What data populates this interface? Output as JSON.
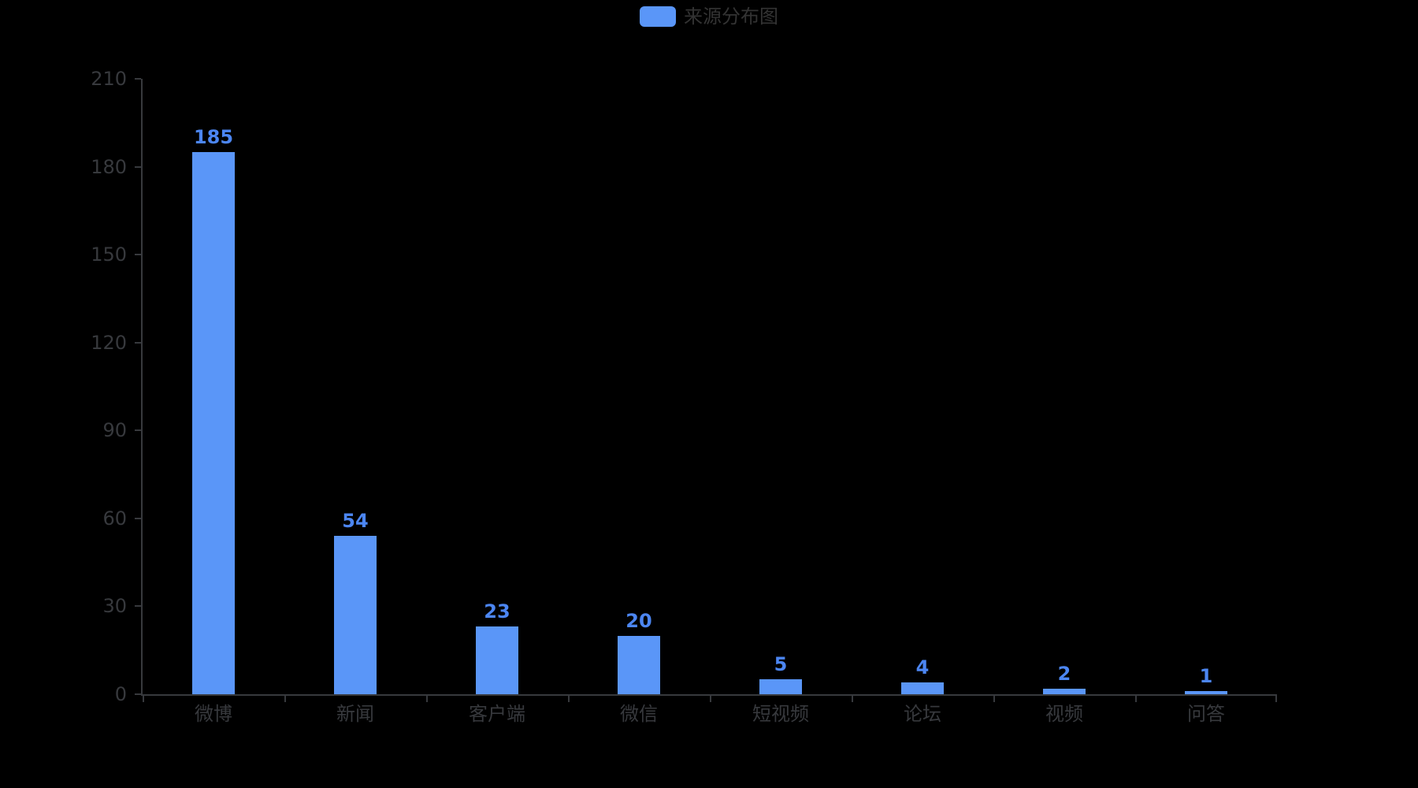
{
  "background_color": "#000000",
  "colors": {
    "bar": "#5A96F8",
    "value_label": "#4C86F2",
    "axis": "#37393D",
    "axis_label": "#37393D",
    "legend_text": "#333333"
  },
  "legend": {
    "label": "来源分布图"
  },
  "chart_data": {
    "type": "bar",
    "title": "来源分布图",
    "categories": [
      "微博",
      "新闻",
      "客户端",
      "微信",
      "短视频",
      "论坛",
      "视频",
      "问答"
    ],
    "values": [
      185,
      54,
      23,
      20,
      5,
      4,
      2,
      1
    ],
    "value_labels": [
      "185",
      "54",
      "23",
      "20",
      "5",
      "4",
      "2",
      "1"
    ],
    "xlabel": "",
    "ylabel": "",
    "ylim": [
      0,
      210
    ],
    "yticks": [
      0,
      30,
      60,
      90,
      120,
      150,
      180,
      210
    ],
    "grid": false,
    "legend_entries": [
      "来源分布图"
    ],
    "legend_position": "top-center",
    "bar_color": "#5A96F8",
    "label_color": "#4C86F2"
  }
}
